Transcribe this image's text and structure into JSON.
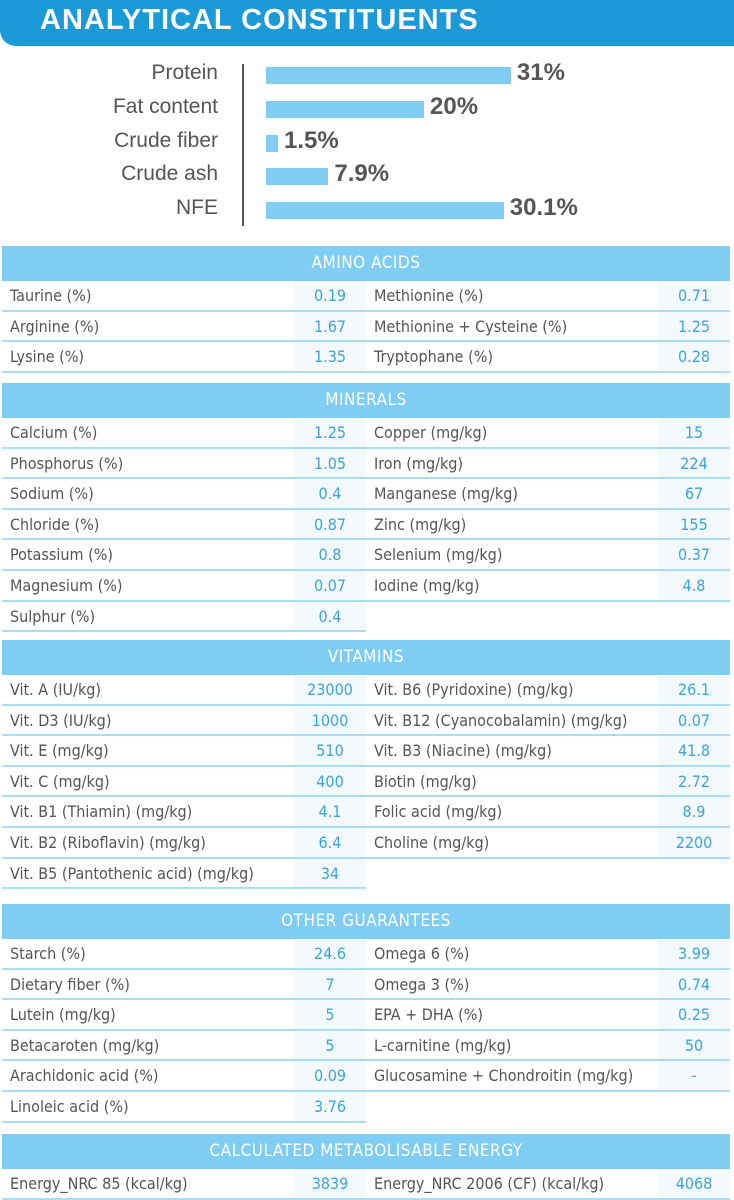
{
  "title": "ANALYTICAL CONSTITUENTS",
  "chart_data": {
    "type": "bar",
    "orientation": "horizontal",
    "categories": [
      "Protein",
      "Fat content",
      "Crude fiber",
      "Crude ash",
      "NFE"
    ],
    "values": [
      31,
      20,
      1.5,
      7.9,
      30.1
    ],
    "labels": [
      "31%",
      "20%",
      "1.5%",
      "7.9%",
      "30.1%"
    ],
    "bar_color": "#7fcdf3"
  },
  "sections": [
    {
      "title": "AMINO ACIDS",
      "rows": [
        [
          [
            "Taurine (%)",
            "0.19"
          ],
          [
            "Methionine (%)",
            "0.71"
          ]
        ],
        [
          [
            "Arginine (%)",
            "1.67"
          ],
          [
            "Methionine + Cysteine (%)",
            "1.25"
          ]
        ],
        [
          [
            "Lysine (%)",
            "1.35"
          ],
          [
            "Tryptophane (%)",
            "0.28"
          ]
        ]
      ]
    },
    {
      "title": "MINERALS",
      "rows": [
        [
          [
            "Calcium (%)",
            "1.25"
          ],
          [
            "Copper (mg/kg)",
            "15"
          ]
        ],
        [
          [
            "Phosphorus (%)",
            "1.05"
          ],
          [
            "Iron (mg/kg)",
            "224"
          ]
        ],
        [
          [
            "Sodium (%)",
            "0.4"
          ],
          [
            "Manganese (mg/kg)",
            "67"
          ]
        ],
        [
          [
            "Chloride (%)",
            "0.87"
          ],
          [
            "Zinc (mg/kg)",
            "155"
          ]
        ],
        [
          [
            "Potassium (%)",
            "0.8"
          ],
          [
            "Selenium (mg/kg)",
            "0.37"
          ]
        ],
        [
          [
            "Magnesium (%)",
            "0.07"
          ],
          [
            "Iodine (mg/kg)",
            "4.8"
          ]
        ],
        [
          [
            "Sulphur (%)",
            "0.4"
          ],
          null
        ]
      ]
    },
    {
      "title": "VITAMINS",
      "rows": [
        [
          [
            "Vit. A (IU/kg)",
            "23000"
          ],
          [
            "Vit. B6 (Pyridoxine) (mg/kg)",
            "26.1"
          ]
        ],
        [
          [
            "Vit. D3 (IU/kg)",
            "1000"
          ],
          [
            "Vit. B12 (Cyanocobalamin) (mg/kg)",
            "0.07"
          ]
        ],
        [
          [
            "Vit. E (mg/kg)",
            "510"
          ],
          [
            "Vit. B3 (Niacine) (mg/kg)",
            "41.8"
          ]
        ],
        [
          [
            "Vit. C (mg/kg)",
            "400"
          ],
          [
            "Biotin (mg/kg)",
            "2.72"
          ]
        ],
        [
          [
            "Vit. B1 (Thiamin) (mg/kg)",
            "4.1"
          ],
          [
            "Folic acid (mg/kg)",
            "8.9"
          ]
        ],
        [
          [
            "Vit. B2 (Riboflavin) (mg/kg)",
            "6.4"
          ],
          [
            "Choline (mg/kg)",
            "2200"
          ]
        ],
        [
          [
            "Vit. B5 (Pantothenic acid) (mg/kg)",
            "34"
          ],
          null
        ]
      ]
    },
    {
      "title": "OTHER GUARANTEES",
      "rows": [
        [
          [
            "Starch (%)",
            "24.6"
          ],
          [
            "Omega 6 (%)",
            "3.99"
          ]
        ],
        [
          [
            "Dietary fiber (%)",
            "7"
          ],
          [
            "Omega 3 (%)",
            "0.74"
          ]
        ],
        [
          [
            "Lutein (mg/kg)",
            "5"
          ],
          [
            "EPA + DHA (%)",
            "0.25"
          ]
        ],
        [
          [
            "Betacaroten (mg/kg)",
            "5"
          ],
          [
            "L-carnitine (mg/kg)",
            "50"
          ]
        ],
        [
          [
            "Arachidonic acid (%)",
            "0.09"
          ],
          [
            "Glucosamine + Chondroitin (mg/kg)",
            "-"
          ]
        ],
        [
          [
            "Linoleic acid (%)",
            "3.76"
          ],
          null
        ]
      ]
    },
    {
      "title": "CALCULATED METABOLISABLE ENERGY",
      "rows": [
        [
          [
            "Energy_NRC 85 (kcal/kg)",
            "3839"
          ],
          [
            "Energy_NRC 2006 (CF) (kcal/kg)",
            "4068"
          ]
        ]
      ]
    }
  ]
}
